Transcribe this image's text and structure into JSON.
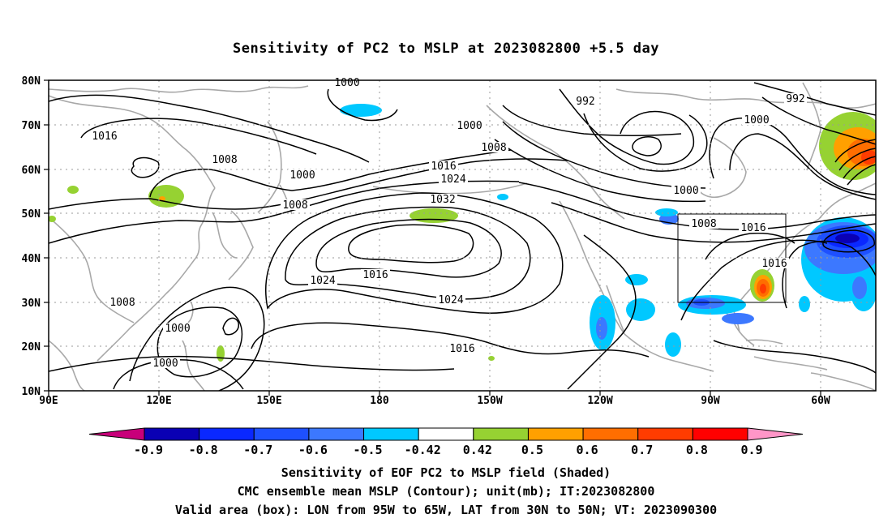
{
  "title": "Sensitivity of PC2 to MSLP at 2023082800 +5.5 day",
  "map": {
    "lat_labels": [
      "80N",
      "70N",
      "60N",
      "50N",
      "40N",
      "30N",
      "20N",
      "10N"
    ],
    "lon_labels": [
      "90E",
      "120E",
      "150E",
      "180",
      "150W",
      "120W",
      "90W",
      "60W"
    ],
    "contour_labels": [
      {
        "text": "1000"
      },
      {
        "text": "1016"
      },
      {
        "text": "1008"
      },
      {
        "text": "1000"
      },
      {
        "text": "1008"
      },
      {
        "text": "1000"
      },
      {
        "text": "1008"
      },
      {
        "text": "1016"
      },
      {
        "text": "1024"
      },
      {
        "text": "1032"
      },
      {
        "text": "992"
      },
      {
        "text": "992"
      },
      {
        "text": "1000"
      },
      {
        "text": "1000"
      },
      {
        "text": "1008"
      },
      {
        "text": "1016"
      },
      {
        "text": "1016"
      },
      {
        "text": "1024"
      },
      {
        "text": "1016"
      },
      {
        "text": "1024"
      },
      {
        "text": "1008"
      },
      {
        "text": "1000"
      },
      {
        "text": "1000"
      },
      {
        "text": "1016"
      }
    ],
    "valid_box": {
      "lon_from": "95W",
      "lon_to": "65W",
      "lat_from": "30N",
      "lat_to": "50N"
    }
  },
  "colorbar": {
    "labels": [
      "-0.9",
      "-0.8",
      "-0.7",
      "-0.6",
      "-0.5",
      "-0.42",
      "0.42",
      "0.5",
      "0.6",
      "0.7",
      "0.8",
      "0.9"
    ],
    "colors": [
      "#c8007a",
      "#0a00b4",
      "#0a28ff",
      "#1e50ff",
      "#3c78ff",
      "#00c8ff",
      "#ffffff",
      "#96d232",
      "#ffa000",
      "#ff6e00",
      "#ff3c00",
      "#ff0000",
      "#ff96c8"
    ]
  },
  "captions": {
    "line1": "Sensitivity of EOF PC2 to MSLP field (Shaded)",
    "line2": "CMC ensemble mean MSLP (Contour); unit(mb); IT:2023082800",
    "line3": "Valid area (box): LON from 95W to 65W, LAT from 30N to 50N; VT: 2023090300"
  }
}
